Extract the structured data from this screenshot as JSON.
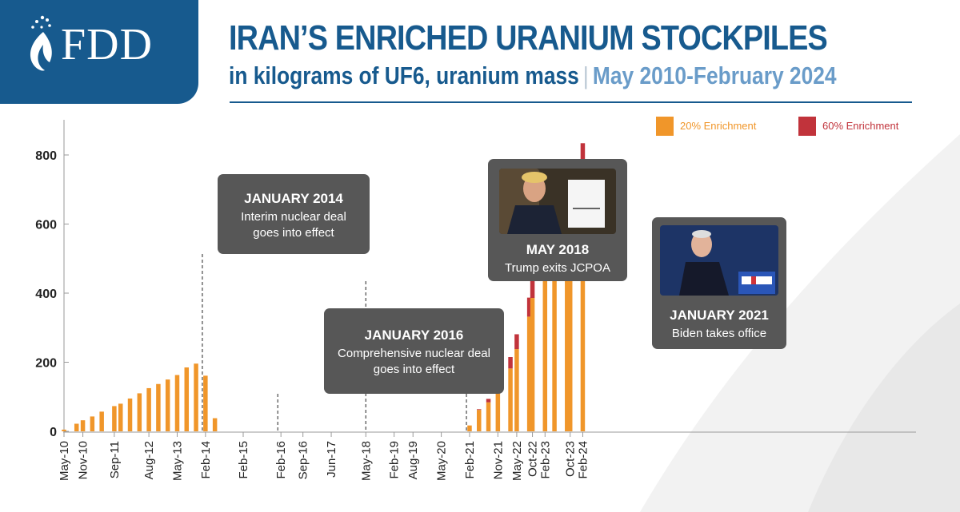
{
  "brand": {
    "logo_text": "FDD",
    "primary_color": "#175a8e"
  },
  "header": {
    "title": "IRAN’S ENRICHED URANIUM STOCKPILES",
    "subtitle_main": "in kilograms of UF6, uranium mass",
    "subtitle_separator": "|",
    "subtitle_range": "May 2010-February 2024"
  },
  "colors": {
    "enrich20": "#f0962a",
    "enrich60": "#c1333b",
    "callout_bg": "#575757"
  },
  "legend": {
    "items": [
      {
        "label": "20% Enrichment",
        "color_key": "enrich20"
      },
      {
        "label": "60% Enrichment",
        "color_key": "enrich60"
      }
    ]
  },
  "chart_data": {
    "type": "bar",
    "stacked": true,
    "title": "IRAN’S ENRICHED URANIUM STOCKPILES",
    "subtitle": "in kilograms of UF6, uranium mass",
    "xlabel": "",
    "ylabel": "",
    "ylim": [
      0,
      840
    ],
    "yticks": [
      0,
      200,
      400,
      600,
      800
    ],
    "grid": false,
    "legend_position": "top-right",
    "x_tick_labels": [
      "May-10",
      "Nov-10",
      "Sep-11",
      "Aug-12",
      "May-13",
      "Feb-14",
      "Feb-15",
      "Feb-16",
      "Sep-16",
      "Jun-17",
      "May-18",
      "Feb-19",
      "Aug-19",
      "May-20",
      "Feb-21",
      "Nov-21",
      "May-22",
      "Oct-22",
      "Feb-23",
      "Oct-23",
      "Feb-24"
    ],
    "x_tick_dates": [
      "2010-05",
      "2010-11",
      "2011-09",
      "2012-08",
      "2013-05",
      "2014-02",
      "2015-02",
      "2016-02",
      "2016-09",
      "2017-06",
      "2018-05",
      "2019-02",
      "2019-08",
      "2020-05",
      "2021-02",
      "2021-11",
      "2022-05",
      "2022-10",
      "2023-02",
      "2023-10",
      "2024-02"
    ],
    "series": [
      {
        "name": "20% Enrichment",
        "points": [
          [
            "2010-05",
            5
          ],
          [
            "2010-09",
            22
          ],
          [
            "2010-11",
            32
          ],
          [
            "2011-02",
            43
          ],
          [
            "2011-05",
            57
          ],
          [
            "2011-09",
            73
          ],
          [
            "2011-11",
            80
          ],
          [
            "2012-02",
            95
          ],
          [
            "2012-05",
            110
          ],
          [
            "2012-08",
            125
          ],
          [
            "2012-11",
            137
          ],
          [
            "2013-02",
            150
          ],
          [
            "2013-05",
            163
          ],
          [
            "2013-08",
            185
          ],
          [
            "2013-11",
            196
          ],
          [
            "2014-02",
            161
          ],
          [
            "2014-05",
            38
          ],
          [
            "2021-02",
            17
          ],
          [
            "2021-05",
            62
          ],
          [
            "2021-08",
            84
          ],
          [
            "2021-11",
            113
          ],
          [
            "2022-03",
            182
          ],
          [
            "2022-05",
            238
          ],
          [
            "2022-09",
            332
          ],
          [
            "2022-10",
            386
          ],
          [
            "2023-02",
            435
          ],
          [
            "2023-05",
            471
          ],
          [
            "2023-09",
            535
          ],
          [
            "2023-10",
            567
          ],
          [
            "2024-02",
            712
          ]
        ]
      },
      {
        "name": "60% Enrichment",
        "points": [
          [
            "2021-02",
            0
          ],
          [
            "2021-05",
            2
          ],
          [
            "2021-08",
            10
          ],
          [
            "2021-11",
            18
          ],
          [
            "2022-03",
            33
          ],
          [
            "2022-05",
            43
          ],
          [
            "2022-09",
            55
          ],
          [
            "2022-10",
            62
          ],
          [
            "2023-02",
            88
          ],
          [
            "2023-05",
            114
          ],
          [
            "2023-09",
            122
          ],
          [
            "2023-10",
            128
          ],
          [
            "2024-02",
            122
          ]
        ]
      }
    ],
    "annotations": [
      {
        "date": "2014-01",
        "title": "JANUARY 2014",
        "lines": [
          "Interim nuclear deal",
          "goes into effect"
        ]
      },
      {
        "date": "2016-01",
        "title": "JANUARY 2016",
        "lines": [
          "Comprehensive nuclear deal",
          "goes into effect"
        ]
      },
      {
        "date": "2018-05",
        "title": "MAY 2018",
        "lines": [
          "Trump exits JCPOA"
        ]
      },
      {
        "date": "2021-01",
        "title": "JANUARY 2021",
        "lines": [
          "Biden takes office"
        ]
      }
    ]
  }
}
